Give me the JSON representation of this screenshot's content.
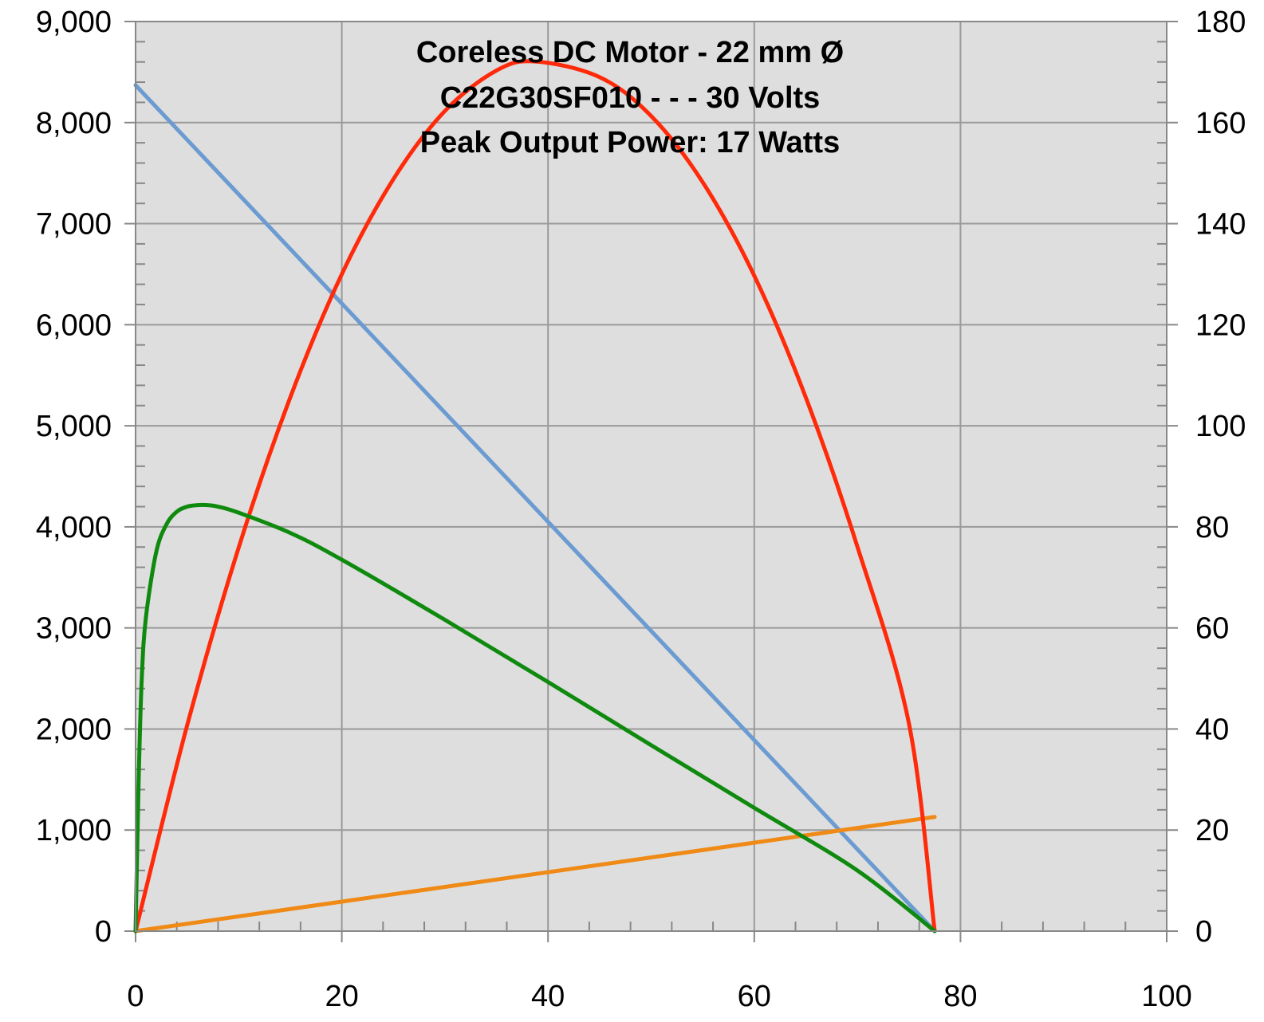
{
  "chart_data": {
    "type": "line",
    "title_lines": [
      "Coreless DC Motor - 22 mm Ø",
      "C22G30SF010 - - - 30 Volts",
      "Peak Output Power: 17 Watts"
    ],
    "xlim": [
      0,
      100
    ],
    "ylim": [
      0,
      9000
    ],
    "y2lim": [
      0,
      180
    ],
    "x_ticks": [
      "0",
      "20",
      "40",
      "60",
      "80",
      "100"
    ],
    "y_ticks": [
      "0",
      "1,000",
      "2,000",
      "3,000",
      "4,000",
      "5,000",
      "6,000",
      "7,000",
      "8,000",
      "9,000"
    ],
    "y2_ticks": [
      "0",
      "20",
      "40",
      "60",
      "80",
      "100",
      "120",
      "140",
      "160",
      "180"
    ],
    "grid": true,
    "series": [
      {
        "axis": "left",
        "color": "#6b9bd1",
        "x": [
          0,
          77.5
        ],
        "y": [
          8370,
          0
        ]
      },
      {
        "axis": "left",
        "color": "#ef8a17",
        "x": [
          0,
          77.5
        ],
        "y": [
          0,
          1130
        ]
      },
      {
        "axis": "right",
        "color": "#ff2a0a",
        "x": [
          0,
          5,
          10,
          15,
          20,
          25,
          30,
          35,
          38.75,
          45,
          50,
          55,
          60,
          65,
          70,
          75,
          77.5
        ],
        "y": [
          0,
          40.7,
          75.9,
          105.6,
          130.0,
          148.8,
          162.3,
          170.3,
          172.1,
          169.0,
          161.3,
          148.2,
          129.7,
          105.6,
          76.1,
          41.1,
          0
        ]
      },
      {
        "axis": "right",
        "color": "#0f8a0f",
        "x": [
          0,
          0.3,
          0.6,
          1,
          2,
          3,
          4,
          5,
          6,
          7,
          8,
          10,
          15,
          20,
          30,
          40,
          50,
          60,
          70,
          77.5
        ],
        "y": [
          0,
          30,
          50,
          62,
          75,
          80.5,
          83,
          84,
          84.3,
          84.3,
          84,
          82.8,
          78.8,
          73.5,
          61.6,
          49.3,
          36.8,
          24.4,
          12.0,
          0
        ]
      }
    ]
  }
}
